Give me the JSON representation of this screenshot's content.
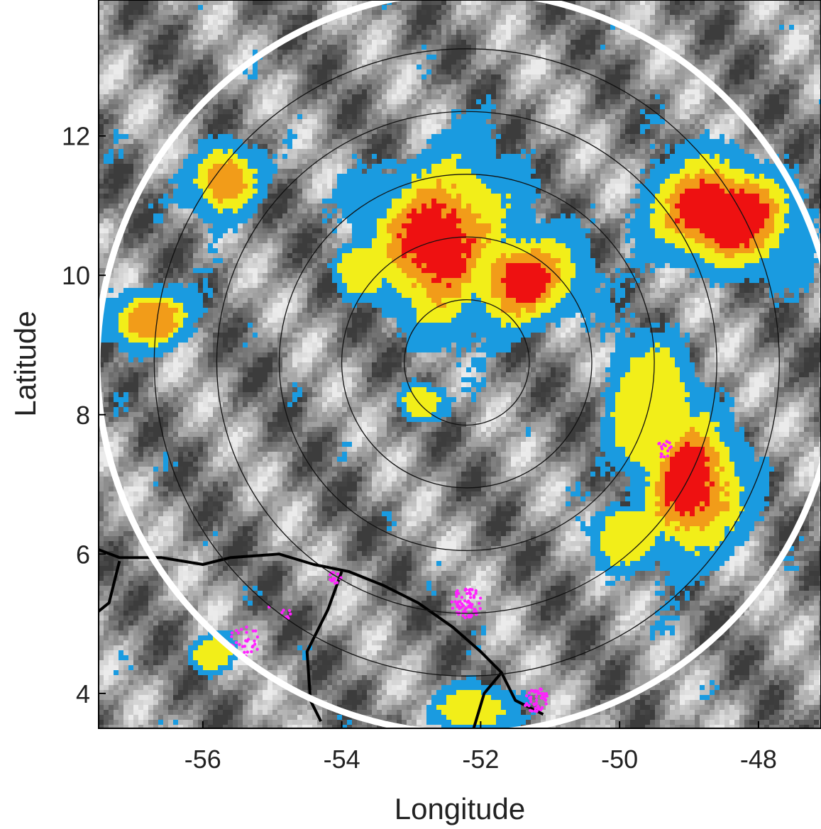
{
  "chart_data": {
    "type": "map",
    "xlabel": "Longitude",
    "ylabel": "Latitude",
    "xlim": [
      -57.5,
      -47.1
    ],
    "ylim": [
      3.5,
      13.95
    ],
    "xticks": [
      -56,
      -54,
      -52,
      -50,
      -48
    ],
    "yticks": [
      4,
      6,
      8,
      10,
      12
    ],
    "xtick_labels": [
      "-56",
      "-54",
      "-52",
      "-50",
      "-48"
    ],
    "ytick_labels": [
      "4",
      "6",
      "8",
      "10",
      "12"
    ],
    "range_rings": {
      "center": [
        -52.2,
        8.75
      ],
      "radii_deg": [
        0.9,
        1.8,
        2.7,
        3.6,
        4.5
      ],
      "outer_radius_deg": 5.32,
      "ring_color": "#111111",
      "outer_ring_color": "#ffffff"
    },
    "colors": {
      "cold_cloud_blue": "#1a9be0",
      "yellow": "#f2ee19",
      "orange": "#f29c19",
      "red": "#ee1111",
      "lightning_magenta": "#ff22ff",
      "coastline": "#000000"
    },
    "convective_cells": [
      {
        "lon": -52.6,
        "lat": 10.6,
        "rx": 1.1,
        "ry": 1.35,
        "core": "red"
      },
      {
        "lon": -51.5,
        "lat": 9.95,
        "rx": 0.95,
        "ry": 0.8,
        "core": "red"
      },
      {
        "lon": -48.6,
        "lat": 10.9,
        "rx": 1.35,
        "ry": 0.9,
        "core": "red"
      },
      {
        "lon": -49.05,
        "lat": 6.95,
        "rx": 0.85,
        "ry": 1.2,
        "core": "red"
      },
      {
        "lon": -55.7,
        "lat": 11.4,
        "rx": 0.55,
        "ry": 0.6,
        "core": "orange"
      },
      {
        "lon": -56.8,
        "lat": 9.4,
        "rx": 0.65,
        "ry": 0.5,
        "core": "orange"
      },
      {
        "lon": -49.6,
        "lat": 8.0,
        "rx": 0.7,
        "ry": 1.1,
        "core": "yellow"
      },
      {
        "lon": -55.9,
        "lat": 4.6,
        "rx": 0.35,
        "ry": 0.3,
        "core": "yellow"
      },
      {
        "lon": -53.8,
        "lat": 10.1,
        "rx": 0.4,
        "ry": 0.4,
        "core": "yellow"
      },
      {
        "lon": -49.9,
        "lat": 6.3,
        "rx": 0.5,
        "ry": 0.45,
        "core": "yellow"
      },
      {
        "lon": -52.9,
        "lat": 8.2,
        "rx": 0.35,
        "ry": 0.3,
        "core": "yellow"
      },
      {
        "lon": -52.2,
        "lat": 3.8,
        "rx": 0.55,
        "ry": 0.35,
        "core": "yellow"
      }
    ],
    "lightning_clusters": [
      {
        "lon": -52.2,
        "lat": 5.3,
        "n": 70,
        "spread": 0.22
      },
      {
        "lon": -51.2,
        "lat": 3.9,
        "n": 45,
        "spread": 0.18
      },
      {
        "lon": -55.4,
        "lat": 4.75,
        "n": 30,
        "spread": 0.22
      },
      {
        "lon": -54.1,
        "lat": 5.65,
        "n": 14,
        "spread": 0.1
      },
      {
        "lon": -49.35,
        "lat": 7.5,
        "n": 18,
        "spread": 0.12
      },
      {
        "lon": -54.9,
        "lat": 5.15,
        "n": 8,
        "spread": 0.18
      }
    ]
  }
}
